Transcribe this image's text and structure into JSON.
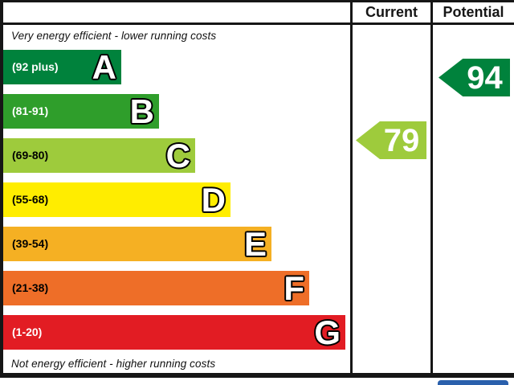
{
  "header": {
    "current_label": "Current",
    "potential_label": "Potential"
  },
  "captions": {
    "top": "Very energy efficient - lower running costs",
    "bottom": "Not energy efficient - higher running costs"
  },
  "bands": [
    {
      "letter": "A",
      "range": "(92 plus)",
      "color": "#00823c",
      "text_color": "#ffffff"
    },
    {
      "letter": "B",
      "range": "(81-91)",
      "color": "#2f9e2b",
      "text_color": "#ffffff"
    },
    {
      "letter": "C",
      "range": "(69-80)",
      "color": "#9ecb3c",
      "text_color": "#000000"
    },
    {
      "letter": "D",
      "range": "(55-68)",
      "color": "#ffed00",
      "text_color": "#000000"
    },
    {
      "letter": "E",
      "range": "(39-54)",
      "color": "#f5b023",
      "text_color": "#000000"
    },
    {
      "letter": "F",
      "range": "(21-38)",
      "color": "#ee6e28",
      "text_color": "#000000"
    },
    {
      "letter": "G",
      "range": "(1-20)",
      "color": "#e21c23",
      "text_color": "#ffffff"
    }
  ],
  "ratings": {
    "current": {
      "value": "79",
      "color": "#9ecb3c",
      "band": "C"
    },
    "potential": {
      "value": "94",
      "color": "#00823c",
      "band": "A"
    }
  },
  "eu_badge": {
    "color": "#2a60ac"
  },
  "chart_data": {
    "type": "bar",
    "categories": [
      "A",
      "B",
      "C",
      "D",
      "E",
      "F",
      "G"
    ],
    "band_ranges": [
      "92 plus",
      "81-91",
      "69-80",
      "55-68",
      "39-54",
      "21-38",
      "1-20"
    ],
    "band_colors": [
      "#00823c",
      "#2f9e2b",
      "#9ecb3c",
      "#ffed00",
      "#f5b023",
      "#ee6e28",
      "#e21c23"
    ],
    "series": [
      {
        "name": "Current",
        "values": [
          79
        ],
        "band": "C",
        "color": "#9ecb3c"
      },
      {
        "name": "Potential",
        "values": [
          94
        ],
        "band": "A",
        "color": "#00823c"
      }
    ],
    "annotations": [
      "Very energy efficient - lower running costs",
      "Not energy efficient - higher running costs"
    ],
    "value_range": [
      1,
      100
    ],
    "legend_position": "none",
    "grid": false
  }
}
